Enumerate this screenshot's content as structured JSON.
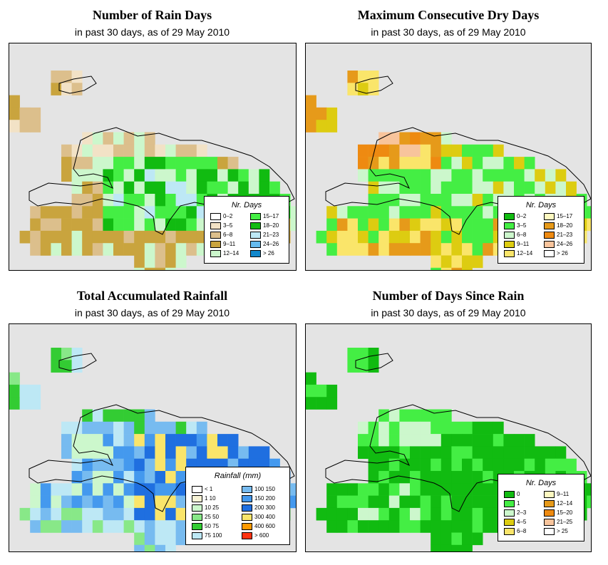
{
  "panels": [
    {
      "id": "rain-days",
      "title": "Number of Rain Days",
      "subtitle": "in past 30 days, as of  29 May 2010",
      "legend_title": "Nr. Days",
      "legend_items": [
        {
          "label": "0–2",
          "color": "#ffffff"
        },
        {
          "label": "3–5",
          "color": "#f2e2c6"
        },
        {
          "label": "6–8",
          "color": "#dcbf8c"
        },
        {
          "label": "9–11",
          "color": "#c9a43e"
        },
        {
          "label": "12–14",
          "color": "#ccf7cc"
        },
        {
          "label": "15–17",
          "color": "#44ee44"
        },
        {
          "label": "18–20",
          "color": "#11bb11"
        },
        {
          "label": "21–23",
          "color": "#bde8f5"
        },
        {
          "label": "24–26",
          "color": "#66bbee"
        },
        {
          "label": "> 26",
          "color": "#1188cc"
        }
      ]
    },
    {
      "id": "dry-days",
      "title": "Maximum Consecutive Dry Days",
      "subtitle": "in past 30 days, as of  29 May 2010",
      "legend_title": "Nr. Days",
      "legend_items": [
        {
          "label": "0–2",
          "color": "#11bb11"
        },
        {
          "label": "3–5",
          "color": "#44ee44"
        },
        {
          "label": "6–8",
          "color": "#ccf7cc"
        },
        {
          "label": "9–11",
          "color": "#ddcc11"
        },
        {
          "label": "12–14",
          "color": "#fae56a"
        },
        {
          "label": "15–17",
          "color": "#fdf8c0"
        },
        {
          "label": "18–20",
          "color": "#e69a1a"
        },
        {
          "label": "21–23",
          "color": "#ee8a11"
        },
        {
          "label": "24–26",
          "color": "#f8c49c"
        },
        {
          "label": "> 26",
          "color": "#ffffff"
        }
      ]
    },
    {
      "id": "rainfall",
      "title": "Total Accumulated Rainfall",
      "subtitle": "in past 30 days, as of  29 May 2010",
      "legend_title": "Rainfall (mm)",
      "legend_items": [
        {
          "label": "< 1",
          "color": "#ffffff"
        },
        {
          "label": "1    10",
          "color": "#f7f3d6"
        },
        {
          "label": "10   25",
          "color": "#ccf7cc"
        },
        {
          "label": "25   50",
          "color": "#88e888"
        },
        {
          "label": "50   75",
          "color": "#33cc33"
        },
        {
          "label": "75  100",
          "color": "#bde8f5"
        },
        {
          "label": "100  150",
          "color": "#77bbf0"
        },
        {
          "label": "150  200",
          "color": "#4499ee"
        },
        {
          "label": "200  300",
          "color": "#1f6fe0"
        },
        {
          "label": "300  400",
          "color": "#fae56a"
        },
        {
          "label": "400  600",
          "color": "#ff9a00"
        },
        {
          "label": "> 600",
          "color": "#ff3311"
        }
      ]
    },
    {
      "id": "days-since-rain",
      "title": "Number of Days Since Rain",
      "subtitle": "in past 30 days, as of  29 May 2010",
      "legend_title": "Nr. Days",
      "legend_items": [
        {
          "label": "0",
          "color": "#11bb11"
        },
        {
          "label": "1",
          "color": "#44ee44"
        },
        {
          "label": "2–3",
          "color": "#ccf7cc"
        },
        {
          "label": "4–5",
          "color": "#ddcc11"
        },
        {
          "label": "6–8",
          "color": "#fae56a"
        },
        {
          "label": "9–11",
          "color": "#fdf8c0"
        },
        {
          "label": "12–14",
          "color": "#e69a1a"
        },
        {
          "label": "15–20",
          "color": "#ee8a11"
        },
        {
          "label": "21–25",
          "color": "#f8c49c"
        },
        {
          "label": "> 25",
          "color": "#ffffff"
        }
      ]
    }
  ],
  "colors": {
    "map_background": "#e4e4e4",
    "coastline": "#000000"
  }
}
